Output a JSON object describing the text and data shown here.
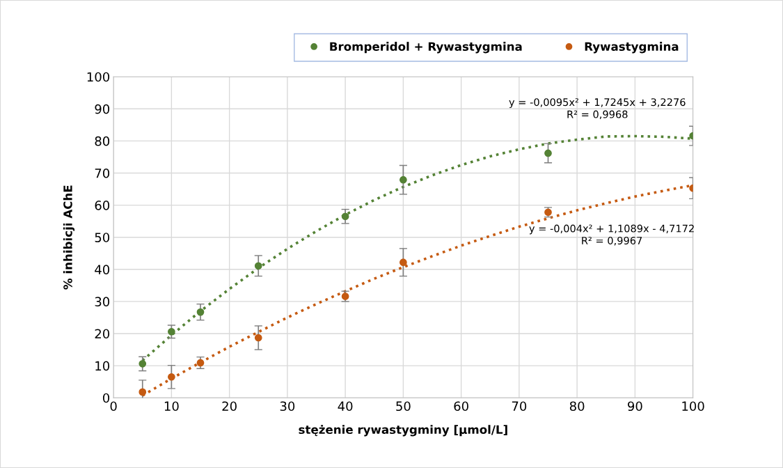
{
  "chart_data": {
    "type": "scatter",
    "xlabel": "stężenie rywastygminy [µmol/L]",
    "ylabel": "% inhibicji AChE",
    "xlim": [
      0,
      100
    ],
    "xticks": [
      0,
      10,
      20,
      30,
      40,
      50,
      60,
      70,
      80,
      90,
      100
    ],
    "ylim": [
      0,
      100
    ],
    "yticks": [
      0,
      10,
      20,
      30,
      40,
      50,
      60,
      70,
      80,
      90,
      100
    ],
    "grid": true,
    "legend": "top right",
    "marker": "circle",
    "series": [
      {
        "name": "Bromperidol + Rywastygmina",
        "color": "#548235",
        "x": [
          5,
          10,
          15,
          25,
          40,
          50,
          75,
          100
        ],
        "values": [
          10.6,
          20.6,
          26.7,
          41.1,
          56.5,
          67.9,
          76.2,
          81.6
        ],
        "errors": [
          2.2,
          2.0,
          2.5,
          3.2,
          2.2,
          4.5,
          3.0,
          3.0
        ]
      },
      {
        "name": "Rywastygmina",
        "color": "#c55a11",
        "x": [
          5,
          10,
          15,
          25,
          40,
          50,
          75,
          100
        ],
        "values": [
          1.8,
          6.5,
          10.9,
          18.7,
          31.6,
          42.2,
          57.8,
          65.3
        ],
        "errors": [
          3.7,
          3.6,
          1.8,
          3.7,
          1.6,
          4.3,
          1.5,
          3.3
        ]
      },
      {
        "type": "line",
        "color": "#548235",
        "line_style": "dotted",
        "marker": "none",
        "x": [
          5,
          10,
          15,
          20,
          25,
          30,
          35,
          40,
          45,
          50,
          55,
          60,
          65,
          70,
          75,
          80,
          85,
          90,
          95,
          100
        ],
        "values": [
          11.6,
          19.5,
          27.0,
          33.9,
          40.4,
          46.4,
          51.9,
          57.0,
          61.6,
          65.7,
          69.3,
          72.5,
          75.2,
          77.4,
          79.2,
          80.4,
          81.4,
          81.5,
          81.3,
          80.7
        ]
      },
      {
        "type": "line",
        "color": "#c55a11",
        "line_style": "dotted",
        "marker": "none",
        "x": [
          5,
          10,
          15,
          20,
          25,
          30,
          35,
          40,
          45,
          50,
          55,
          60,
          65,
          70,
          75,
          80,
          85,
          90,
          95,
          100
        ],
        "values": [
          0.7,
          6.0,
          11.0,
          15.9,
          20.5,
          25.0,
          29.2,
          33.2,
          37.1,
          40.7,
          44.1,
          47.4,
          50.4,
          53.3,
          55.9,
          58.4,
          60.6,
          62.7,
          64.5,
          66.2
        ]
      }
    ],
    "annotations": [
      "y = -0,0095x² + 1,7245x + 3,2276\nR² = 0,9968",
      "y = -0,004x² + 1,1089x - 4,7172\nR² = 0,9967"
    ]
  }
}
